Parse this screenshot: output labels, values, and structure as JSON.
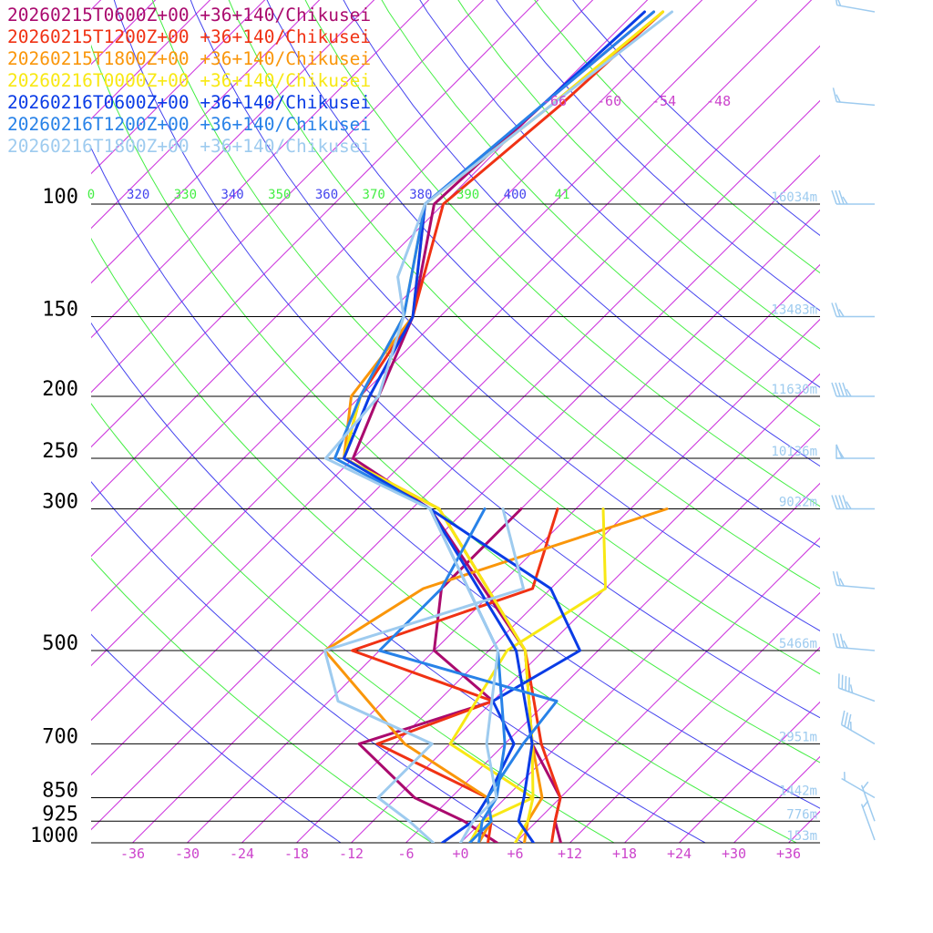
{
  "chart_data": {
    "type": "line",
    "chart_kind": "skew-T log-P sounding",
    "pressure_levels": [
      100,
      150,
      200,
      250,
      300,
      500,
      700,
      850,
      925,
      1000
    ],
    "pressure_labels": [
      "100",
      "150",
      "200",
      "250",
      "300",
      "500",
      "700",
      "850",
      "925",
      "1000"
    ],
    "temperature_ticks": [
      "-36",
      "-30",
      "-24",
      "-18",
      "-12",
      "-6",
      "+0",
      "+6",
      "+12",
      "+18",
      "+24",
      "+30",
      "+36"
    ],
    "temperature_tick_values": [
      -36,
      -30,
      -24,
      -18,
      -12,
      -6,
      0,
      6,
      12,
      18,
      24,
      30,
      36
    ],
    "upper_isotherm_labels": [
      "-66",
      "-60",
      "-54",
      "-48"
    ],
    "theta_labels": [
      "0",
      "320",
      "330",
      "340",
      "350",
      "360",
      "370",
      "380",
      "390",
      "400",
      "41"
    ],
    "height_labels": [
      {
        "p": 100,
        "text": "16034m"
      },
      {
        "p": 150,
        "text": "13483m"
      },
      {
        "p": 200,
        "text": "11630m"
      },
      {
        "p": 250,
        "text": "10136m"
      },
      {
        "p": 300,
        "text": "9022m"
      },
      {
        "p": 500,
        "text": "5466m"
      },
      {
        "p": 700,
        "text": "2951m"
      },
      {
        "p": 850,
        "text": "1442m"
      },
      {
        "p": 925,
        "text": "776m"
      },
      {
        "p": 1000,
        "text": "153m"
      }
    ],
    "series": [
      {
        "name": "20260215T0600Z+00 +36+140/Chikusei",
        "color": "#aa0a6e",
        "temperature": [
          [
            1000,
            11
          ],
          [
            925,
            8
          ],
          [
            850,
            6
          ],
          [
            700,
            -3
          ],
          [
            500,
            -14
          ],
          [
            300,
            -40
          ],
          [
            250,
            -54
          ],
          [
            200,
            -58
          ],
          [
            150,
            -63
          ],
          [
            100,
            -73
          ],
          [
            70,
            -72
          ],
          [
            50,
            -70
          ]
        ],
        "dewpoint": [
          [
            1000,
            4
          ],
          [
            925,
            -2
          ],
          [
            850,
            -10
          ],
          [
            700,
            -22
          ],
          [
            600,
            -12
          ],
          [
            500,
            -24
          ],
          [
            400,
            -30
          ],
          [
            300,
            -30
          ]
        ]
      },
      {
        "name": "20260215T1200Z+00 +36+140/Chikusei",
        "color": "#f03214",
        "temperature": [
          [
            1000,
            10
          ],
          [
            925,
            8
          ],
          [
            850,
            6
          ],
          [
            700,
            -2
          ],
          [
            500,
            -14
          ],
          [
            300,
            -39
          ],
          [
            250,
            -55
          ],
          [
            200,
            -60
          ],
          [
            150,
            -63
          ],
          [
            100,
            -72
          ],
          [
            70,
            -70
          ],
          [
            50,
            -69
          ]
        ],
        "dewpoint": [
          [
            1000,
            3
          ],
          [
            925,
            1
          ],
          [
            850,
            -2
          ],
          [
            700,
            -20
          ],
          [
            600,
            -12
          ],
          [
            500,
            -33
          ],
          [
            400,
            -20
          ],
          [
            300,
            -26
          ]
        ]
      },
      {
        "name": "20260215T1800Z+00 +36+140/Chikusei",
        "color": "#fa960a",
        "temperature": [
          [
            1000,
            7
          ],
          [
            925,
            5
          ],
          [
            850,
            4
          ],
          [
            700,
            -3
          ],
          [
            500,
            -14
          ],
          [
            300,
            -39
          ],
          [
            250,
            -55
          ],
          [
            200,
            -61
          ],
          [
            150,
            -63
          ],
          [
            100,
            -74
          ],
          [
            70,
            -71
          ],
          [
            50,
            -69
          ]
        ],
        "dewpoint": [
          [
            1000,
            2
          ],
          [
            925,
            1
          ],
          [
            850,
            -2
          ],
          [
            700,
            -17
          ],
          [
            500,
            -36
          ],
          [
            400,
            -32
          ],
          [
            300,
            -14
          ]
        ]
      },
      {
        "name": "20260216T0000Z+00 +36+140/Chikusei",
        "color": "#f8e814",
        "temperature": [
          [
            1000,
            6
          ],
          [
            925,
            5
          ],
          [
            850,
            3
          ],
          [
            700,
            -3
          ],
          [
            500,
            -14
          ],
          [
            300,
            -39
          ],
          [
            250,
            -55
          ],
          [
            200,
            -60
          ],
          [
            150,
            -64
          ],
          [
            100,
            -74
          ],
          [
            70,
            -71
          ],
          [
            50,
            -69
          ]
        ],
        "dewpoint": [
          [
            1000,
            1
          ],
          [
            925,
            0
          ],
          [
            850,
            3
          ],
          [
            700,
            -12
          ],
          [
            500,
            -16
          ],
          [
            400,
            -12
          ],
          [
            300,
            -21
          ]
        ]
      },
      {
        "name": "20260216T0600Z+00 +36+140/Chikusei",
        "color": "#0a3ce6",
        "temperature": [
          [
            1000,
            8
          ],
          [
            925,
            4
          ],
          [
            850,
            2
          ],
          [
            700,
            -3
          ],
          [
            500,
            -15
          ],
          [
            300,
            -40
          ],
          [
            250,
            -55
          ],
          [
            200,
            -59
          ],
          [
            150,
            -63
          ],
          [
            100,
            -74
          ],
          [
            70,
            -72
          ],
          [
            50,
            -71
          ]
        ],
        "dewpoint": [
          [
            1000,
            -2
          ],
          [
            925,
            -1
          ],
          [
            850,
            -2
          ],
          [
            700,
            -5
          ],
          [
            600,
            -12
          ],
          [
            500,
            -8
          ],
          [
            400,
            -18
          ],
          [
            300,
            -40
          ]
        ]
      },
      {
        "name": "20260216T1200Z+00 +36+140/Chikusei",
        "color": "#2882e8",
        "temperature": [
          [
            1000,
            2
          ],
          [
            925,
            0
          ],
          [
            850,
            -1
          ],
          [
            700,
            -6
          ],
          [
            500,
            -17
          ],
          [
            300,
            -40
          ],
          [
            250,
            -56
          ],
          [
            200,
            -60
          ],
          [
            150,
            -64
          ],
          [
            100,
            -74
          ],
          [
            70,
            -72
          ],
          [
            50,
            -70
          ]
        ],
        "dewpoint": [
          [
            1000,
            1
          ],
          [
            925,
            1
          ],
          [
            850,
            -2
          ],
          [
            700,
            -4
          ],
          [
            600,
            -5
          ],
          [
            500,
            -30
          ],
          [
            400,
            -30
          ],
          [
            300,
            -34
          ]
        ]
      },
      {
        "name": "20260216T1800Z+00 +36+140/Chikusei",
        "color": "#9ecbef",
        "temperature": [
          [
            1000,
            0
          ],
          [
            925,
            -1
          ],
          [
            850,
            -1
          ],
          [
            700,
            -8
          ],
          [
            500,
            -17
          ],
          [
            300,
            -40
          ],
          [
            250,
            -57
          ],
          [
            200,
            -58
          ],
          [
            150,
            -64
          ],
          [
            130,
            -69
          ],
          [
            100,
            -74
          ],
          [
            70,
            -71
          ],
          [
            50,
            -68
          ]
        ],
        "dewpoint": [
          [
            1000,
            -3
          ],
          [
            925,
            -8
          ],
          [
            850,
            -14
          ],
          [
            700,
            -14
          ],
          [
            600,
            -29
          ],
          [
            500,
            -36
          ],
          [
            400,
            -21
          ],
          [
            300,
            -32
          ]
        ]
      }
    ],
    "wind_profile": [
      {
        "p": 1000,
        "direction": 340,
        "speed": 5
      },
      {
        "p": 925,
        "direction": 340,
        "speed": 5
      },
      {
        "p": 850,
        "direction": 300,
        "speed": 5
      },
      {
        "p": 700,
        "direction": 300,
        "speed": 35
      },
      {
        "p": 600,
        "direction": 290,
        "speed": 45
      },
      {
        "p": 500,
        "direction": 275,
        "speed": 35
      },
      {
        "p": 400,
        "direction": 275,
        "speed": 25
      },
      {
        "p": 300,
        "direction": 270,
        "speed": 45
      },
      {
        "p": 250,
        "direction": 270,
        "speed": 55
      },
      {
        "p": 200,
        "direction": 270,
        "speed": 45
      },
      {
        "p": 150,
        "direction": 270,
        "speed": 25
      },
      {
        "p": 100,
        "direction": 270,
        "speed": 35
      },
      {
        "p": 70,
        "direction": 275,
        "speed": 15
      },
      {
        "p": 50,
        "direction": 280,
        "speed": 15
      }
    ]
  }
}
